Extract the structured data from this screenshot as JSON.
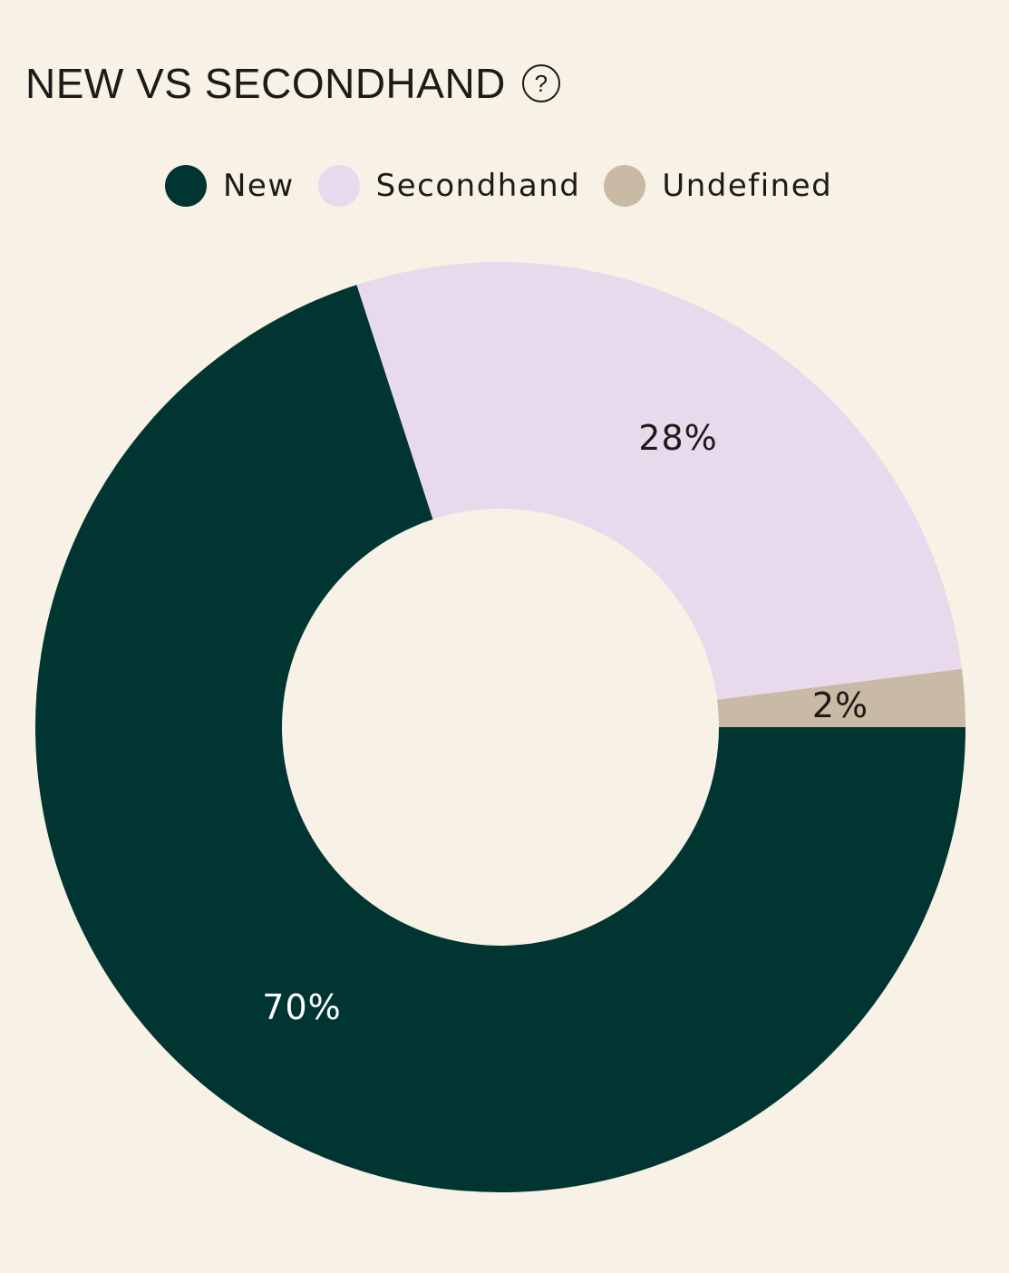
{
  "header": {
    "title": "NEW VS SECONDHAND",
    "help_icon": "question-circle-icon"
  },
  "colors": {
    "background": "#f7f1e6",
    "new": "#013532",
    "secondhand": "#e9d9ec",
    "undefined": "#c8baa5",
    "text_dark": "#1d1a18",
    "text_light": "#ffffff"
  },
  "chart_data": {
    "type": "pie",
    "variant": "donut",
    "legend_position": "top",
    "series": [
      {
        "name": "New",
        "value": 70,
        "label": "70%",
        "color": "#013532"
      },
      {
        "name": "Secondhand",
        "value": 28,
        "label": "28%",
        "color": "#e9d9ec"
      },
      {
        "name": "Undefined",
        "value": 2,
        "label": "2%",
        "color": "#c8baa5"
      }
    ]
  }
}
